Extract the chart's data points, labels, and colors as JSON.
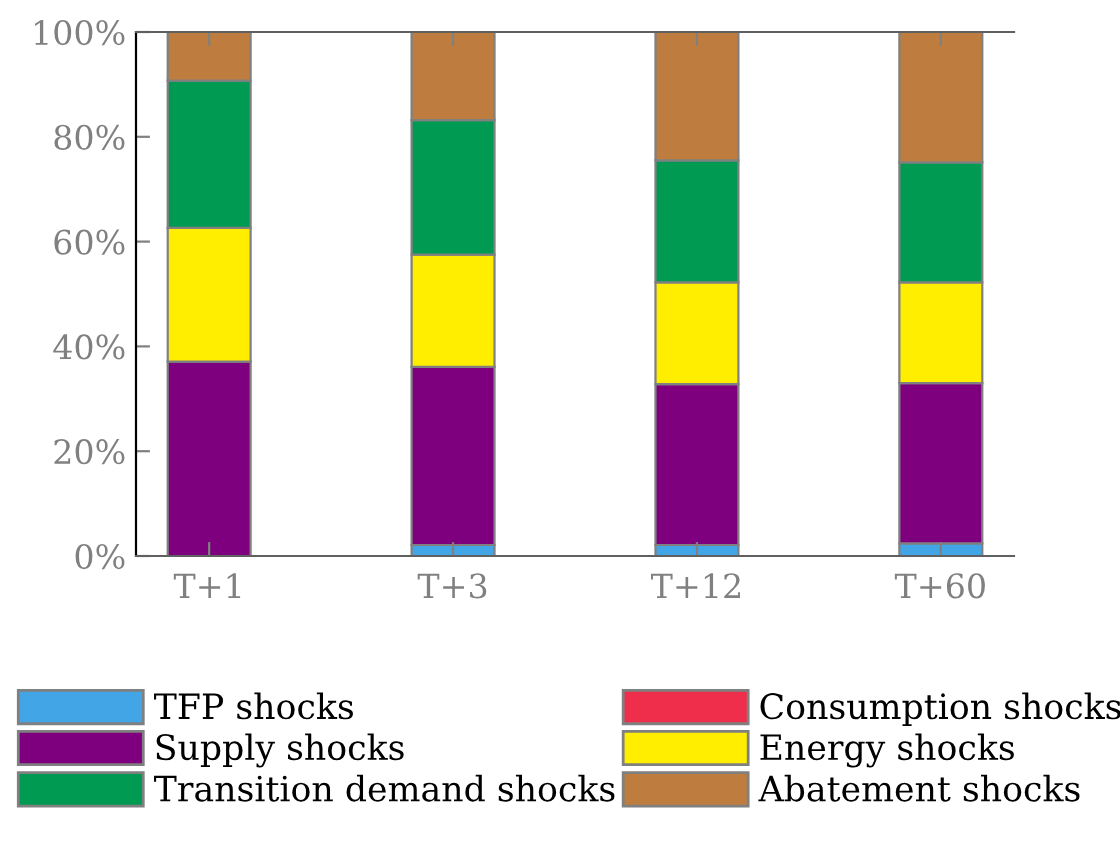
{
  "chart_data": {
    "type": "bar",
    "stacked": true,
    "categories": [
      "T+1",
      "T+3",
      "T+12",
      "T+60"
    ],
    "series": [
      {
        "name": "TFP shocks",
        "color": "#42a5e6",
        "values": [
          0,
          2.1,
          2.1,
          2.4
        ]
      },
      {
        "name": "Consumption shocks",
        "color": "#ee2e4b",
        "values": [
          null,
          null,
          null,
          null
        ]
      },
      {
        "name": "Supply shocks",
        "color": "#7f007f",
        "values": [
          37.1,
          34.0,
          30.7,
          30.6
        ]
      },
      {
        "name": "Energy shocks",
        "color": "#ffee00",
        "values": [
          25.5,
          21.4,
          19.4,
          19.2
        ]
      },
      {
        "name": "Transition demand shocks",
        "color": "#009a52",
        "values": [
          28.1,
          25.7,
          23.3,
          22.9
        ]
      },
      {
        "name": "Abatement shocks",
        "color": "#be7d3e",
        "values": [
          9.3,
          16.8,
          24.5,
          24.9
        ]
      }
    ],
    "ylim": [
      0,
      100
    ],
    "yticks": [
      {
        "value": 0,
        "label": "0%"
      },
      {
        "value": 20,
        "label": "20%"
      },
      {
        "value": 40,
        "label": "40%"
      },
      {
        "value": 60,
        "label": "60%"
      },
      {
        "value": 80,
        "label": "80%"
      },
      {
        "value": 100,
        "label": "100%"
      }
    ],
    "grid": false,
    "legend": "bottom"
  }
}
